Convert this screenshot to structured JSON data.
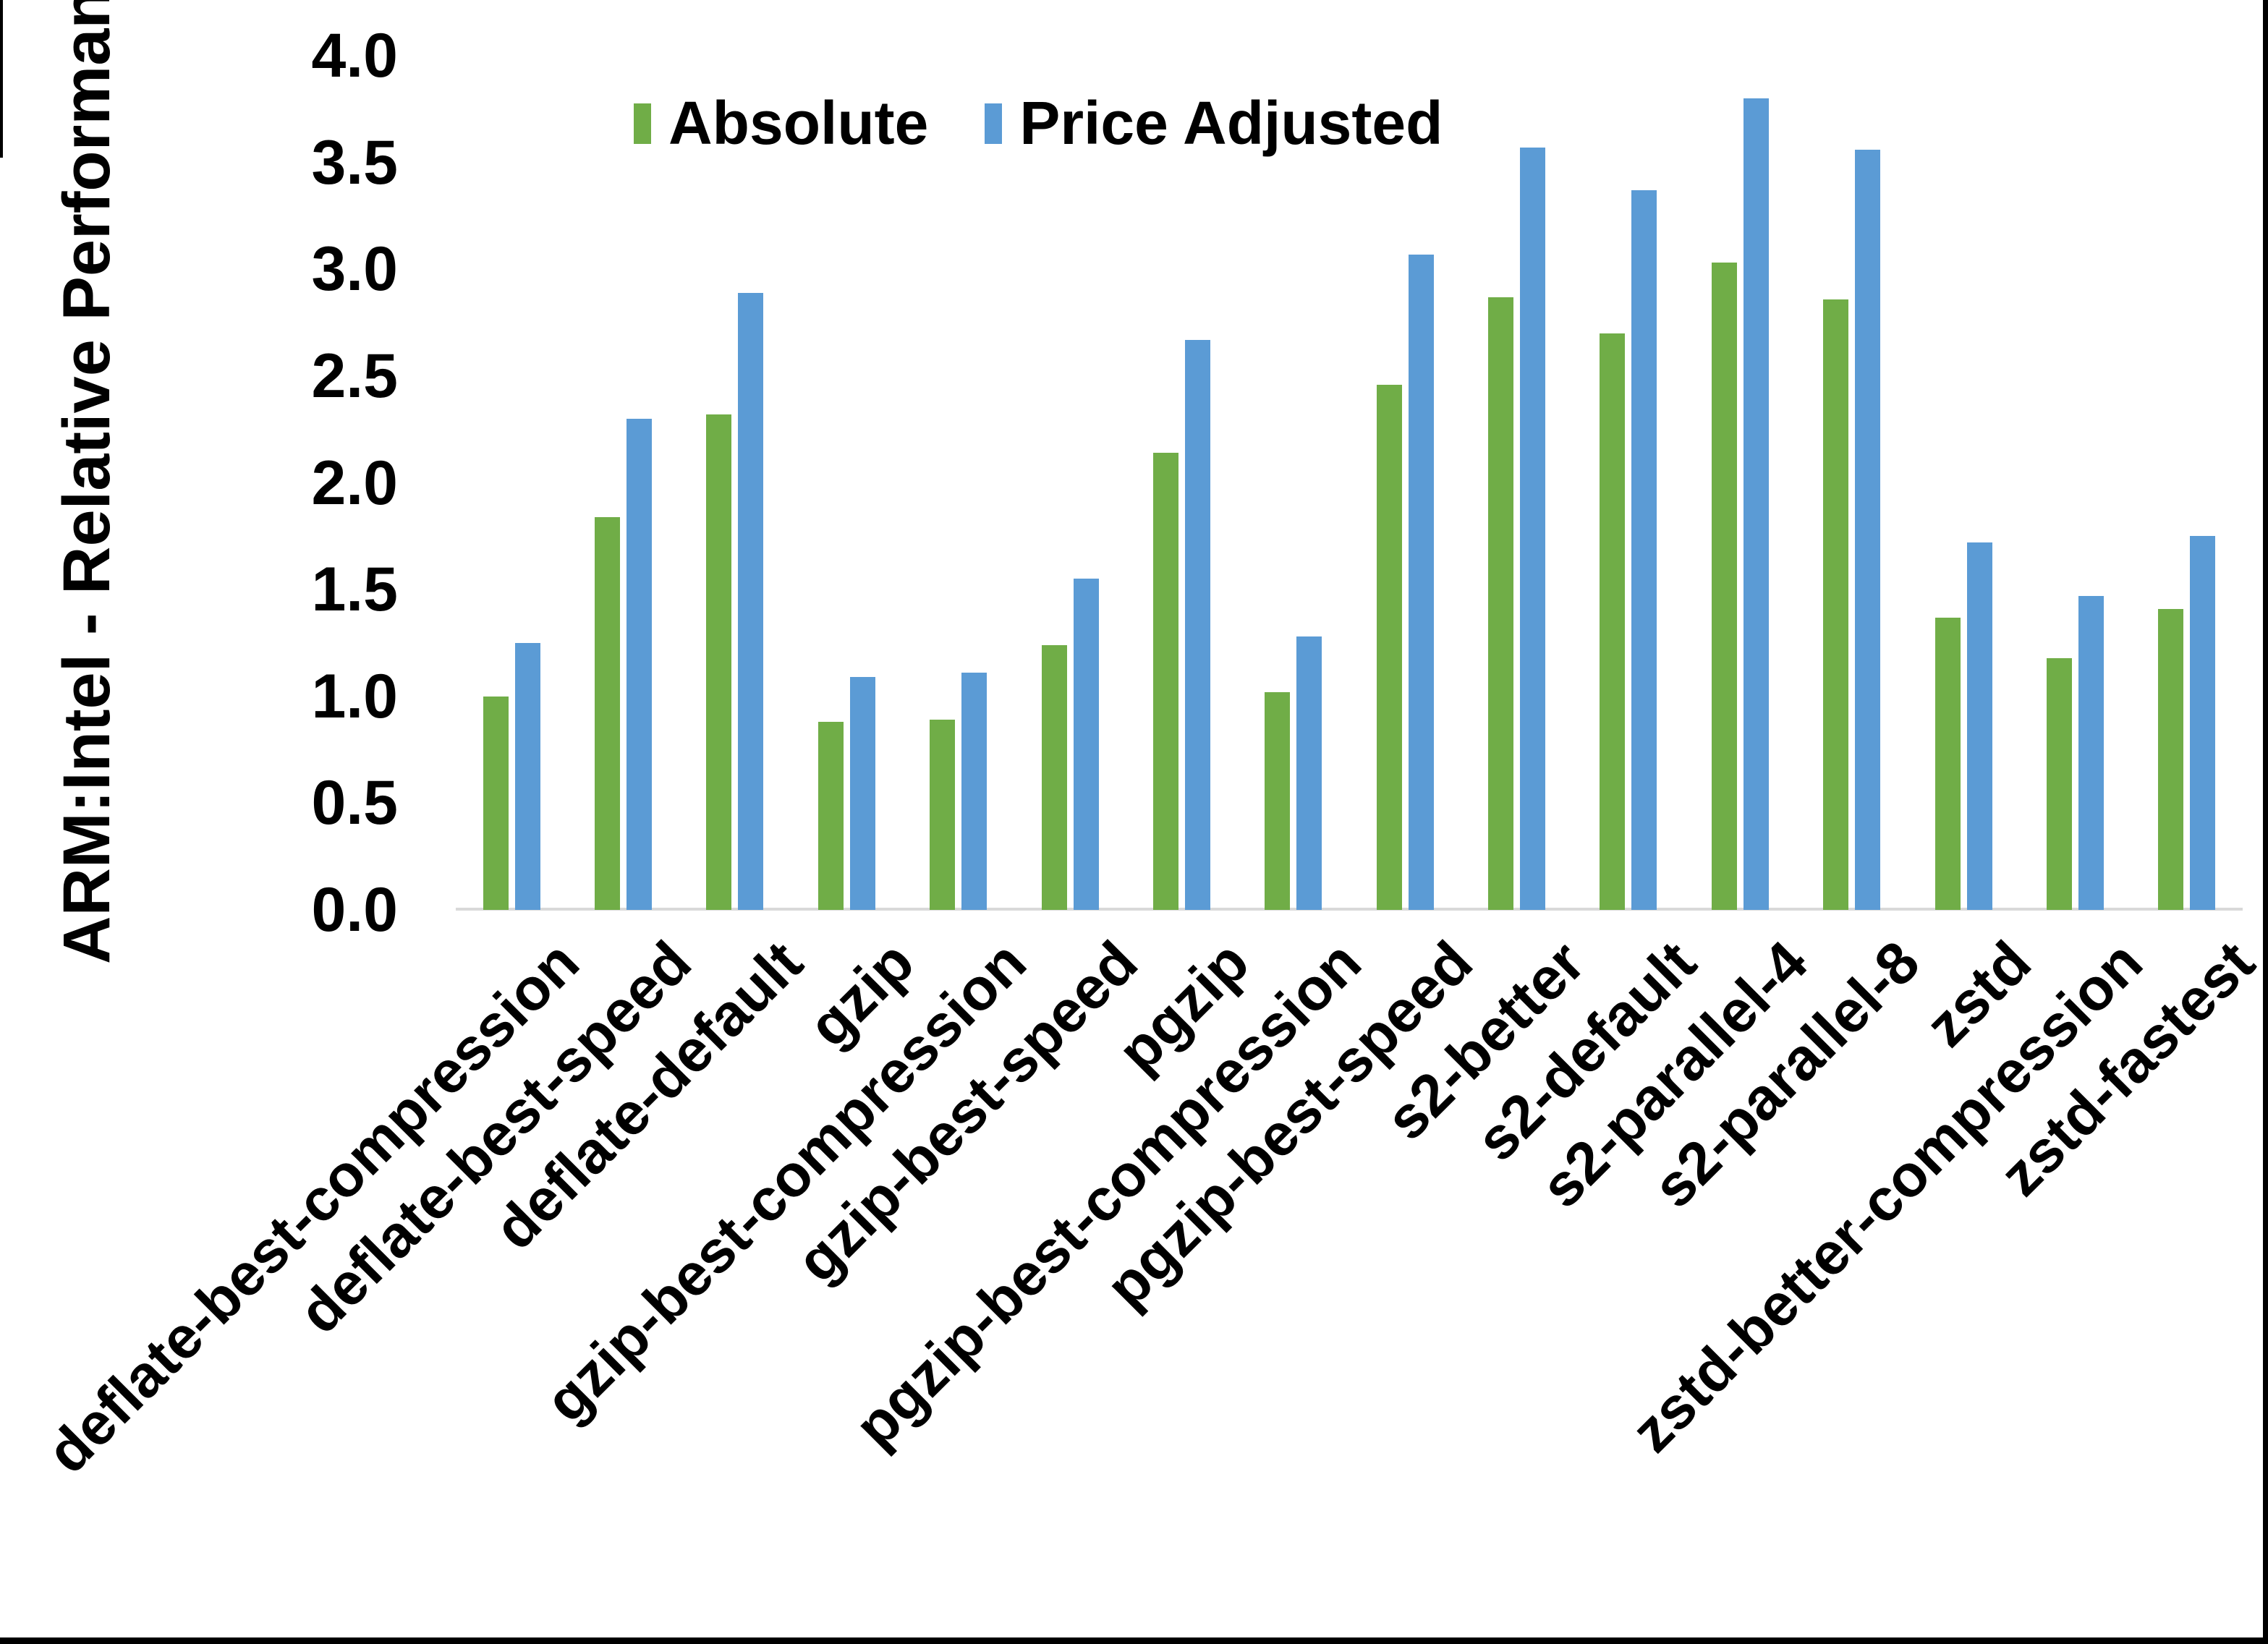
{
  "figure": {
    "y_axis_title": "ARM:Intel - Relative Performance"
  },
  "chart_data": {
    "type": "bar",
    "title": "",
    "xlabel": "",
    "ylabel": "ARM:Intel - Relative Performance",
    "ylim": [
      0,
      4
    ],
    "ytick_step": 0.5,
    "ytick_labels": [
      "0.0",
      "0.5",
      "1.0",
      "1.5",
      "2.0",
      "2.5",
      "3.0",
      "3.5",
      "4.0"
    ],
    "grid": "off",
    "legend_position": "top-center",
    "axis_line_color": "#D9D9D9",
    "categories": [
      "deflate-best-compression",
      "deflate-best-speed",
      "deflate-default",
      "gzip",
      "gzip-best-compression",
      "gzip-best-speed",
      "pgzip",
      "pgzip-best-compression",
      "pgzip-best-speed",
      "s2-better",
      "s2-default",
      "s2-parallel-4",
      "s2-parallel-8",
      "zstd",
      "zstd-better-compression",
      "zstd-fastest"
    ],
    "series": [
      {
        "name": "Absolute",
        "color": "#70AD47",
        "values": [
          1.0,
          1.84,
          2.32,
          0.88,
          0.89,
          1.24,
          2.14,
          1.02,
          2.46,
          2.87,
          2.7,
          3.03,
          2.86,
          1.37,
          1.18,
          1.41
        ]
      },
      {
        "name": "Price Adjusted",
        "color": "#5B9BD5",
        "values": [
          1.25,
          2.3,
          2.89,
          1.09,
          1.11,
          1.55,
          2.67,
          1.28,
          3.07,
          3.57,
          3.37,
          3.8,
          3.56,
          1.72,
          1.47,
          1.75
        ]
      }
    ]
  }
}
